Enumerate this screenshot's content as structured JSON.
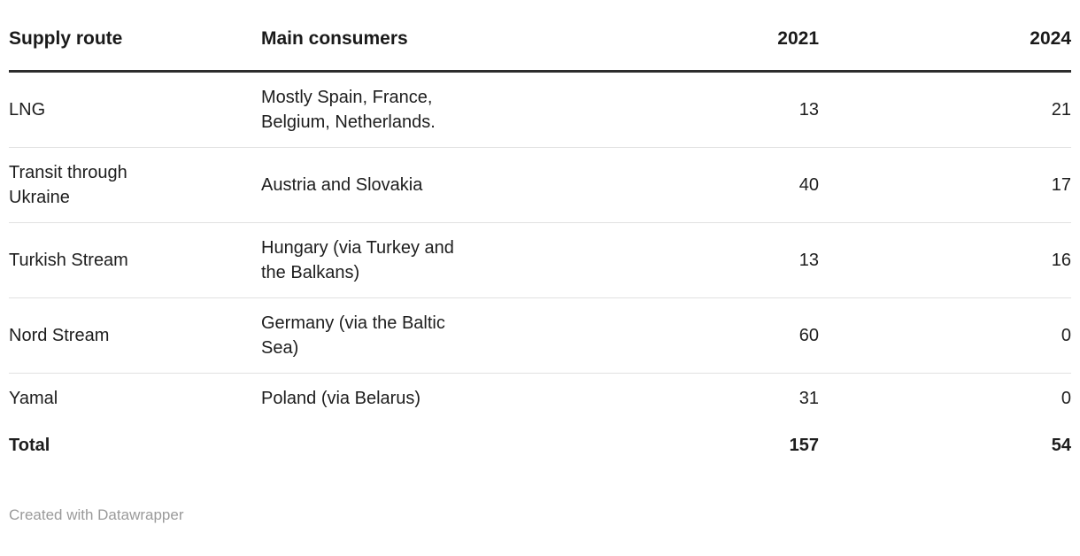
{
  "table": {
    "columns": [
      "Supply route",
      "Main consumers",
      "2021",
      "2024"
    ],
    "rows": [
      {
        "route": "LNG",
        "consumers": "Mostly Spain, France, Belgium, Netherlands.",
        "y2021": "13",
        "y2024": "21"
      },
      {
        "route": "Transit through Ukraine",
        "consumers": "Austria and Slovakia",
        "y2021": "40",
        "y2024": "17"
      },
      {
        "route": "Turkish Stream",
        "consumers": "Hungary (via Turkey and the Balkans)",
        "y2021": "13",
        "y2024": "16"
      },
      {
        "route": "Nord Stream",
        "consumers": "Germany (via the Baltic Sea)",
        "y2021": "60",
        "y2024": "0"
      },
      {
        "route": "Yamal",
        "consumers": "Poland (via Belarus)",
        "y2021": "31",
        "y2024": "0"
      }
    ],
    "total": {
      "label": "Total",
      "y2021": "157",
      "y2024": "54"
    }
  },
  "footer": {
    "credit": "Created with Datawrapper"
  },
  "colors": {
    "background": "#ffffff",
    "text": "#1d1d1d",
    "header_rule": "#2d2d2d",
    "row_divider": "#e1e1e1",
    "footer_text": "#9a9a9a"
  },
  "chart_data": {
    "type": "table",
    "columns": [
      "Supply route",
      "Main consumers",
      "2021",
      "2024"
    ],
    "rows": [
      [
        "LNG",
        "Mostly Spain, France, Belgium, Netherlands.",
        13,
        21
      ],
      [
        "Transit through Ukraine",
        "Austria and Slovakia",
        40,
        17
      ],
      [
        "Turkish Stream",
        "Hungary (via Turkey and the Balkans)",
        13,
        16
      ],
      [
        "Nord Stream",
        "Germany (via the Baltic Sea)",
        60,
        0
      ],
      [
        "Yamal",
        "Poland (via Belarus)",
        31,
        0
      ],
      [
        "Total",
        "",
        157,
        54
      ]
    ],
    "credit": "Created with Datawrapper",
    "layout": {
      "numeric_columns_right_aligned": true,
      "grid": "horizontal-only",
      "legend": "none"
    }
  }
}
